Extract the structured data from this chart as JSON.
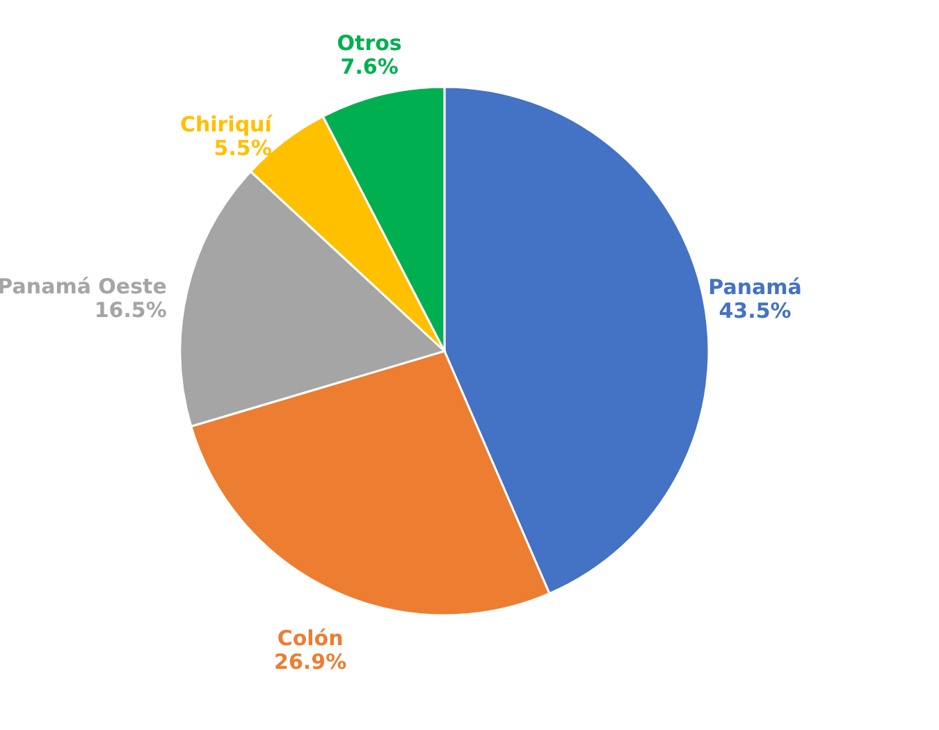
{
  "chart_data": {
    "type": "pie",
    "categories": [
      "Panamá",
      "Colón",
      "Panamá Oeste",
      "Chiriquí",
      "Otros"
    ],
    "values": [
      43.5,
      26.9,
      16.5,
      5.5,
      7.6
    ],
    "value_labels": [
      "43.5%",
      "26.9%",
      "16.5%",
      "5.5%",
      "7.6%"
    ],
    "colors": [
      "#4472c4",
      "#ed7d31",
      "#a5a5a5",
      "#ffc000",
      "#00b050"
    ],
    "legend": false
  }
}
